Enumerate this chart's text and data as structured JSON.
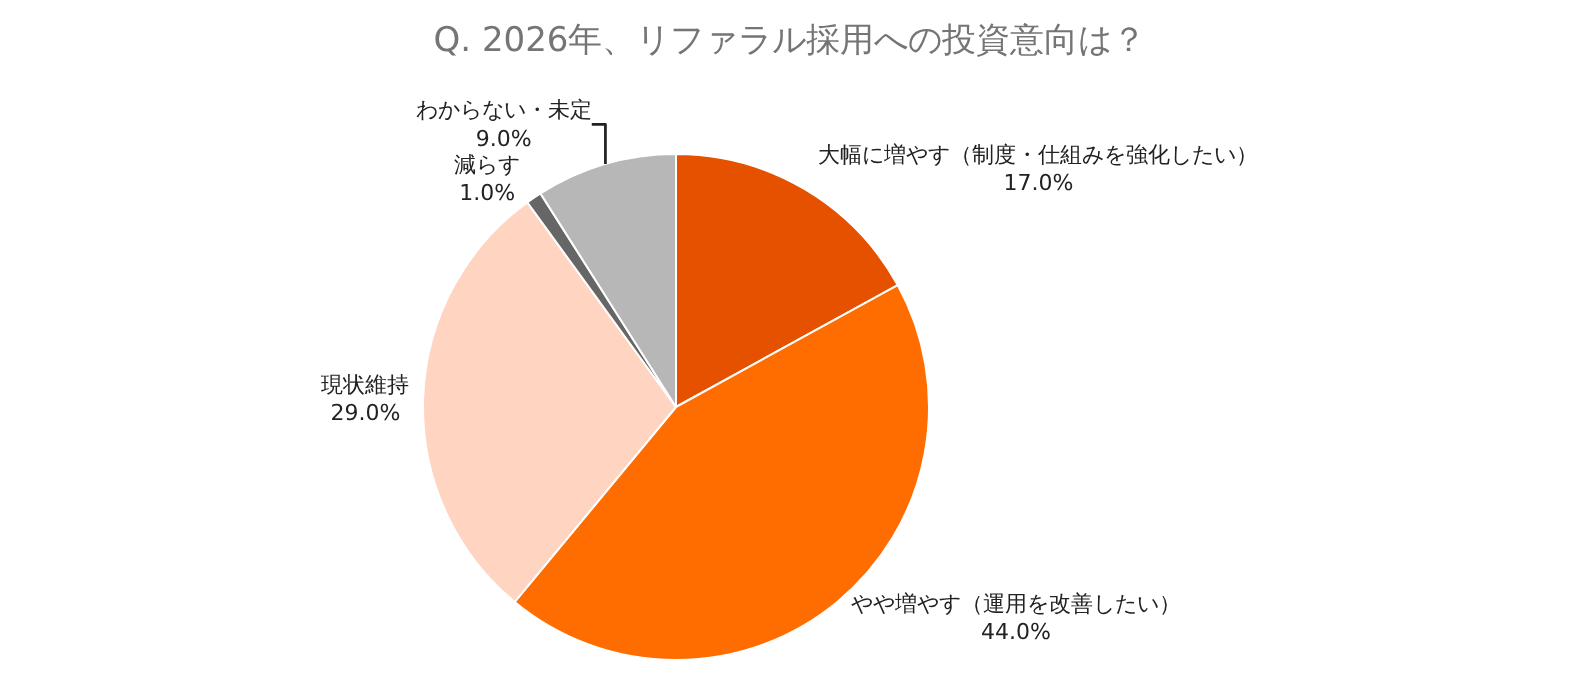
{
  "chart_data": {
    "type": "pie",
    "title": "Q. 2026年、リファラル採用への投資意向は？",
    "categories": [
      "大幅に増やす（制度・仕組みを強化したい）",
      "やや増やす（運用を改善したい）",
      "現状維持",
      "減らす",
      "わからない・未定"
    ],
    "values": [
      17.0,
      44.0,
      29.0,
      1.0,
      9.0
    ],
    "value_labels": [
      "17.0%",
      "44.0%",
      "29.0%",
      "1.0%",
      "9.0%"
    ],
    "colors": [
      "#e65100",
      "#ff6d00",
      "#ffd5c2",
      "#666666",
      "#b7b7b7"
    ],
    "legend": false
  }
}
